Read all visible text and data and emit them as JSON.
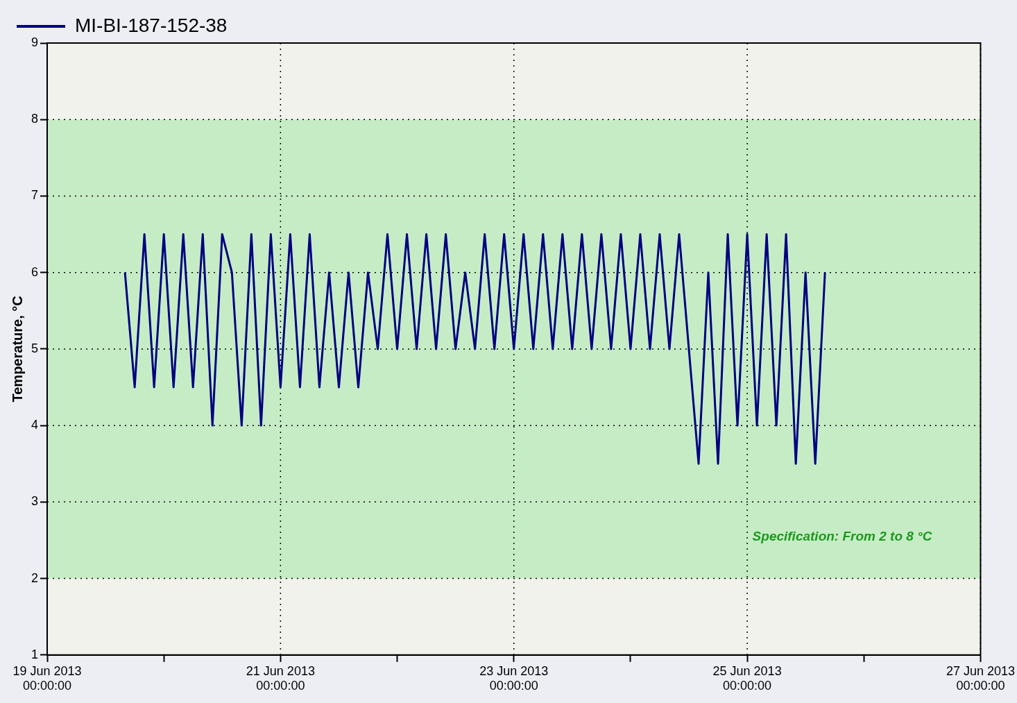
{
  "chart_data": {
    "type": "line",
    "ylabel": "Temperature, °C",
    "legend": "top left",
    "grid": true,
    "marker": "none",
    "line_style": "solid",
    "xlim": [
      "2013-06-19",
      "2013-06-27"
    ],
    "xticks": [
      {
        "value": "2013-06-19",
        "label": "19 Jun 2013\n00:00:00"
      },
      {
        "value": "2013-06-20",
        "label": null
      },
      {
        "value": "2013-06-21",
        "label": "21 Jun 2013\n00:00:00"
      },
      {
        "value": "2013-06-22",
        "label": null
      },
      {
        "value": "2013-06-23",
        "label": "23 Jun 2013\n00:00:00"
      },
      {
        "value": "2013-06-24",
        "label": null
      },
      {
        "value": "2013-06-25",
        "label": "25 Jun 2013\n00:00:00"
      },
      {
        "value": "2013-06-26",
        "label": null
      },
      {
        "value": "2013-06-27",
        "label": "27 Jun 2013\n00:00:00"
      }
    ],
    "ylim": [
      1,
      9
    ],
    "yticks": [
      1,
      2,
      3,
      4,
      5,
      6,
      7,
      8,
      9
    ],
    "bands": [
      {
        "axis": "y",
        "from": 2,
        "to": 8,
        "label": "Specification: From 2 to 8 °C",
        "color": "#c6ecc6"
      }
    ],
    "x": [
      "2013-06-19T16:00",
      "2013-06-19T18:00",
      "2013-06-19T20:00",
      "2013-06-19T22:00",
      "2013-06-20T00:00",
      "2013-06-20T02:00",
      "2013-06-20T04:00",
      "2013-06-20T06:00",
      "2013-06-20T08:00",
      "2013-06-20T10:00",
      "2013-06-20T12:00",
      "2013-06-20T14:00",
      "2013-06-20T16:00",
      "2013-06-20T18:00",
      "2013-06-20T20:00",
      "2013-06-20T22:00",
      "2013-06-21T00:00",
      "2013-06-21T02:00",
      "2013-06-21T04:00",
      "2013-06-21T06:00",
      "2013-06-21T08:00",
      "2013-06-21T10:00",
      "2013-06-21T12:00",
      "2013-06-21T14:00",
      "2013-06-21T16:00",
      "2013-06-21T18:00",
      "2013-06-21T20:00",
      "2013-06-21T22:00",
      "2013-06-22T00:00",
      "2013-06-22T02:00",
      "2013-06-22T04:00",
      "2013-06-22T06:00",
      "2013-06-22T08:00",
      "2013-06-22T10:00",
      "2013-06-22T12:00",
      "2013-06-22T14:00",
      "2013-06-22T16:00",
      "2013-06-22T18:00",
      "2013-06-22T20:00",
      "2013-06-22T22:00",
      "2013-06-23T00:00",
      "2013-06-23T02:00",
      "2013-06-23T04:00",
      "2013-06-23T06:00",
      "2013-06-23T08:00",
      "2013-06-23T10:00",
      "2013-06-23T12:00",
      "2013-06-23T14:00",
      "2013-06-23T16:00",
      "2013-06-23T18:00",
      "2013-06-23T20:00",
      "2013-06-23T22:00",
      "2013-06-24T00:00",
      "2013-06-24T02:00",
      "2013-06-24T04:00",
      "2013-06-24T06:00",
      "2013-06-24T08:00",
      "2013-06-24T10:00",
      "2013-06-24T12:00",
      "2013-06-24T14:00",
      "2013-06-24T16:00",
      "2013-06-24T18:00",
      "2013-06-24T20:00",
      "2013-06-24T22:00",
      "2013-06-25T00:00",
      "2013-06-25T02:00",
      "2013-06-25T04:00",
      "2013-06-25T06:00",
      "2013-06-25T08:00",
      "2013-06-25T10:00",
      "2013-06-25T12:00",
      "2013-06-25T14:00",
      "2013-06-25T16:00"
    ],
    "series": [
      {
        "name": "MI-BI-187-152-38",
        "color": "#000080",
        "values": [
          6.0,
          4.5,
          6.5,
          4.5,
          6.5,
          4.5,
          6.5,
          4.5,
          6.5,
          4.0,
          6.5,
          6.0,
          4.0,
          6.5,
          4.0,
          6.5,
          4.5,
          6.5,
          4.5,
          6.5,
          4.5,
          6.0,
          4.5,
          6.0,
          4.5,
          6.0,
          5.0,
          6.5,
          5.0,
          6.5,
          5.0,
          6.5,
          5.0,
          6.5,
          5.0,
          6.0,
          5.0,
          6.5,
          5.0,
          6.5,
          5.0,
          6.5,
          5.0,
          6.5,
          5.0,
          6.5,
          5.0,
          6.5,
          5.0,
          6.5,
          5.0,
          6.5,
          5.0,
          6.5,
          5.0,
          6.5,
          5.0,
          6.5,
          5.0,
          3.5,
          6.0,
          3.5,
          6.5,
          4.0,
          6.5,
          4.0,
          6.5,
          4.0,
          6.5,
          3.5,
          6.0,
          3.5,
          6.0
        ]
      }
    ]
  }
}
